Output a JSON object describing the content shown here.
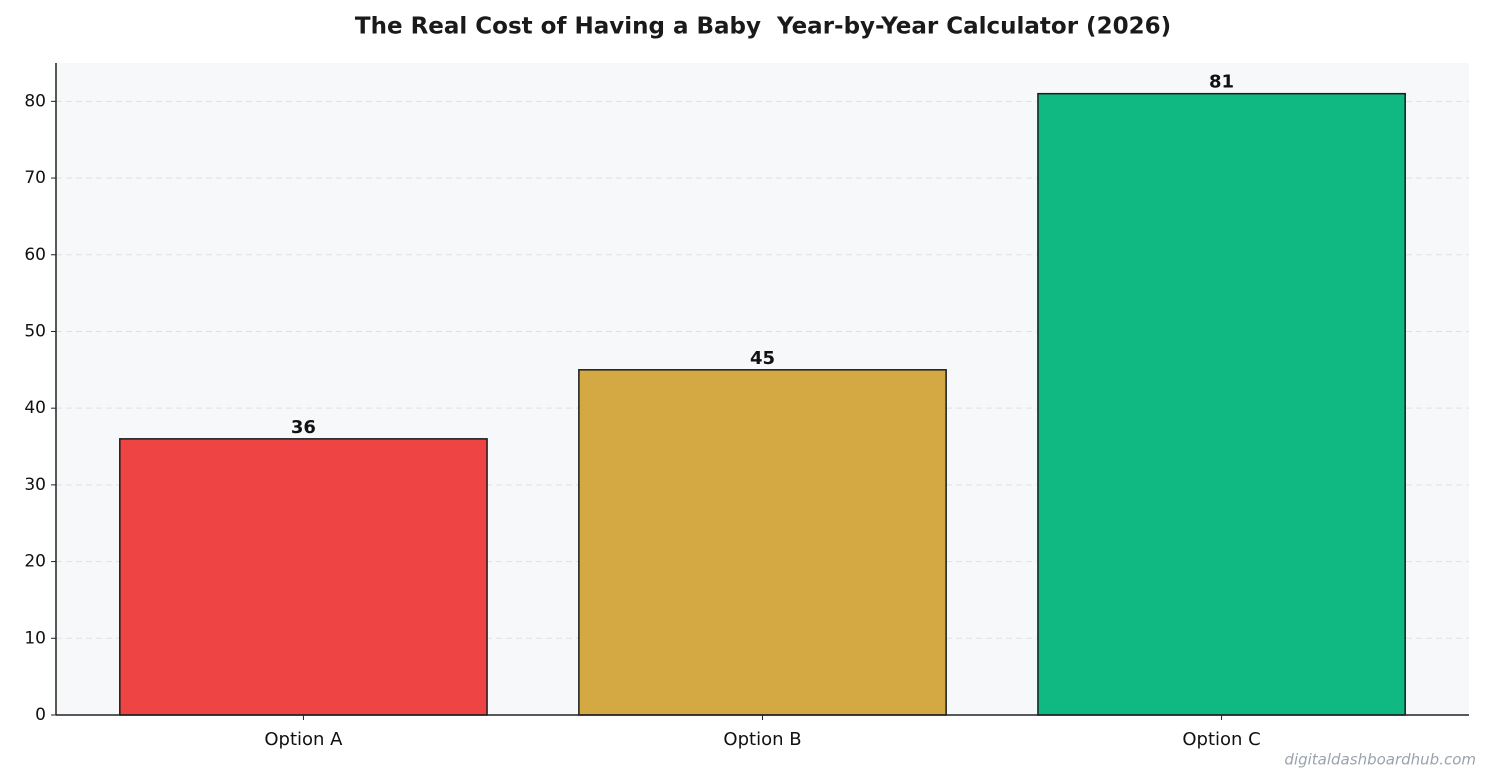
{
  "chart_data": {
    "type": "bar",
    "title": "The Real Cost of Having a Baby  Year-by-Year Calculator (2026)",
    "categories": [
      "Option A",
      "Option B",
      "Option C"
    ],
    "values": [
      36,
      45,
      81
    ],
    "colors": [
      "#ef4444",
      "#d4a843",
      "#10b981"
    ],
    "ylim": [
      0,
      85
    ],
    "yticks": [
      0,
      10,
      20,
      30,
      40,
      50,
      60,
      70,
      80
    ],
    "grid": true
  },
  "watermark": "digitaldashboardhub.com"
}
